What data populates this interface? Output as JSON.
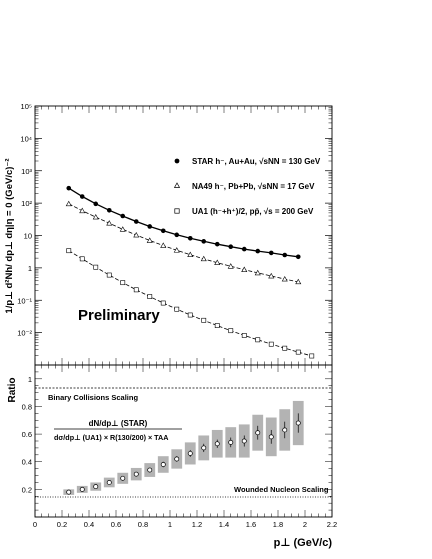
{
  "chart_data": [
    {
      "type": "scatter",
      "yscale": "log",
      "ylim": [
        0.001,
        100000
      ],
      "xlim": [
        0,
        2.2
      ],
      "ylabel": "1/p⊥ d²Nh/ dp⊥ dη|η = 0 (GeV/c)⁻²",
      "yticks": [
        "10⁵",
        "10⁴",
        "10³",
        "10²",
        "10",
        "1",
        "10⁻¹",
        "10⁻²"
      ],
      "annotation": "Preliminary",
      "legend_position": "top-right",
      "series": [
        {
          "name": "STAR h⁻, Au+Au, √sNN = 130 GeV",
          "marker": "filled-circle",
          "fit_curve": "solid",
          "x": [
            0.25,
            0.35,
            0.45,
            0.55,
            0.65,
            0.75,
            0.85,
            0.95,
            1.05,
            1.15,
            1.25,
            1.35,
            1.45,
            1.55,
            1.65,
            1.75,
            1.85,
            1.95
          ],
          "y": [
            290,
            160,
            95,
            60,
            40,
            27,
            19,
            14,
            10.5,
            8.2,
            6.6,
            5.4,
            4.5,
            3.8,
            3.3,
            2.9,
            2.5,
            2.2
          ]
        },
        {
          "name": "NA49 h⁻, Pb+Pb, √sNN = 17 GeV",
          "marker": "open-triangle",
          "fit_curve": "dashed",
          "x": [
            0.25,
            0.35,
            0.45,
            0.55,
            0.65,
            0.75,
            0.85,
            0.95,
            1.05,
            1.15,
            1.25,
            1.35,
            1.45,
            1.55,
            1.65,
            1.75,
            1.85,
            1.95
          ],
          "y": [
            95,
            58,
            37,
            24,
            15.5,
            10.3,
            7,
            4.9,
            3.5,
            2.55,
            1.9,
            1.45,
            1.12,
            0.88,
            0.7,
            0.56,
            0.45,
            0.37
          ]
        },
        {
          "name": "UA1 (h⁻+h⁺)/2, pp̄, √s = 200 GeV",
          "marker": "open-square",
          "fit_curve": "dashed",
          "x": [
            0.25,
            0.35,
            0.45,
            0.55,
            0.65,
            0.75,
            0.85,
            0.95,
            1.05,
            1.15,
            1.25,
            1.35,
            1.45,
            1.55,
            1.65,
            1.75,
            1.85,
            1.95,
            2.05
          ],
          "y": [
            3.4,
            1.9,
            1.05,
            0.6,
            0.35,
            0.21,
            0.13,
            0.082,
            0.053,
            0.035,
            0.024,
            0.0165,
            0.0115,
            0.0082,
            0.006,
            0.0044,
            0.0033,
            0.0025,
            0.0019
          ]
        }
      ]
    },
    {
      "type": "scatter",
      "ylim": [
        0,
        1.1
      ],
      "xlim": [
        0,
        2.2
      ],
      "ylabel": "Ratio",
      "xlabel": "p⊥ (GeV/c)",
      "yticks": [
        "0.2",
        "0.4",
        "0.6",
        "0.8",
        "1"
      ],
      "xticks": [
        "0",
        "0.2",
        "0.4",
        "0.6",
        "0.8",
        "1",
        "1.2",
        "1.4",
        "1.6",
        "1.8",
        "2",
        "2.2"
      ],
      "reference_lines": [
        {
          "label": "Binary Collisions Scaling",
          "y": 1.0
        },
        {
          "label": "Wounded Nucleon Scaling",
          "y": 0.175
        }
      ],
      "formula": {
        "numerator": "dN/dp⊥ (STAR)",
        "denominator": "dσ/dp⊥ (UA1) × R(130/200) × TAA"
      },
      "series": [
        {
          "marker": "open-circle",
          "x": [
            0.25,
            0.35,
            0.45,
            0.55,
            0.65,
            0.75,
            0.85,
            0.95,
            1.05,
            1.15,
            1.25,
            1.35,
            1.45,
            1.55,
            1.65,
            1.75,
            1.85,
            1.95
          ],
          "y": [
            0.18,
            0.2,
            0.22,
            0.25,
            0.28,
            0.31,
            0.34,
            0.38,
            0.42,
            0.46,
            0.5,
            0.53,
            0.54,
            0.55,
            0.61,
            0.58,
            0.63,
            0.68
          ],
          "err": [
            0.008,
            0.008,
            0.01,
            0.012,
            0.012,
            0.015,
            0.015,
            0.02,
            0.02,
            0.025,
            0.03,
            0.03,
            0.035,
            0.04,
            0.05,
            0.05,
            0.06,
            0.07
          ],
          "sys": [
            0.02,
            0.025,
            0.03,
            0.035,
            0.04,
            0.045,
            0.05,
            0.06,
            0.07,
            0.08,
            0.09,
            0.1,
            0.11,
            0.12,
            0.13,
            0.14,
            0.15,
            0.16
          ]
        }
      ]
    }
  ]
}
